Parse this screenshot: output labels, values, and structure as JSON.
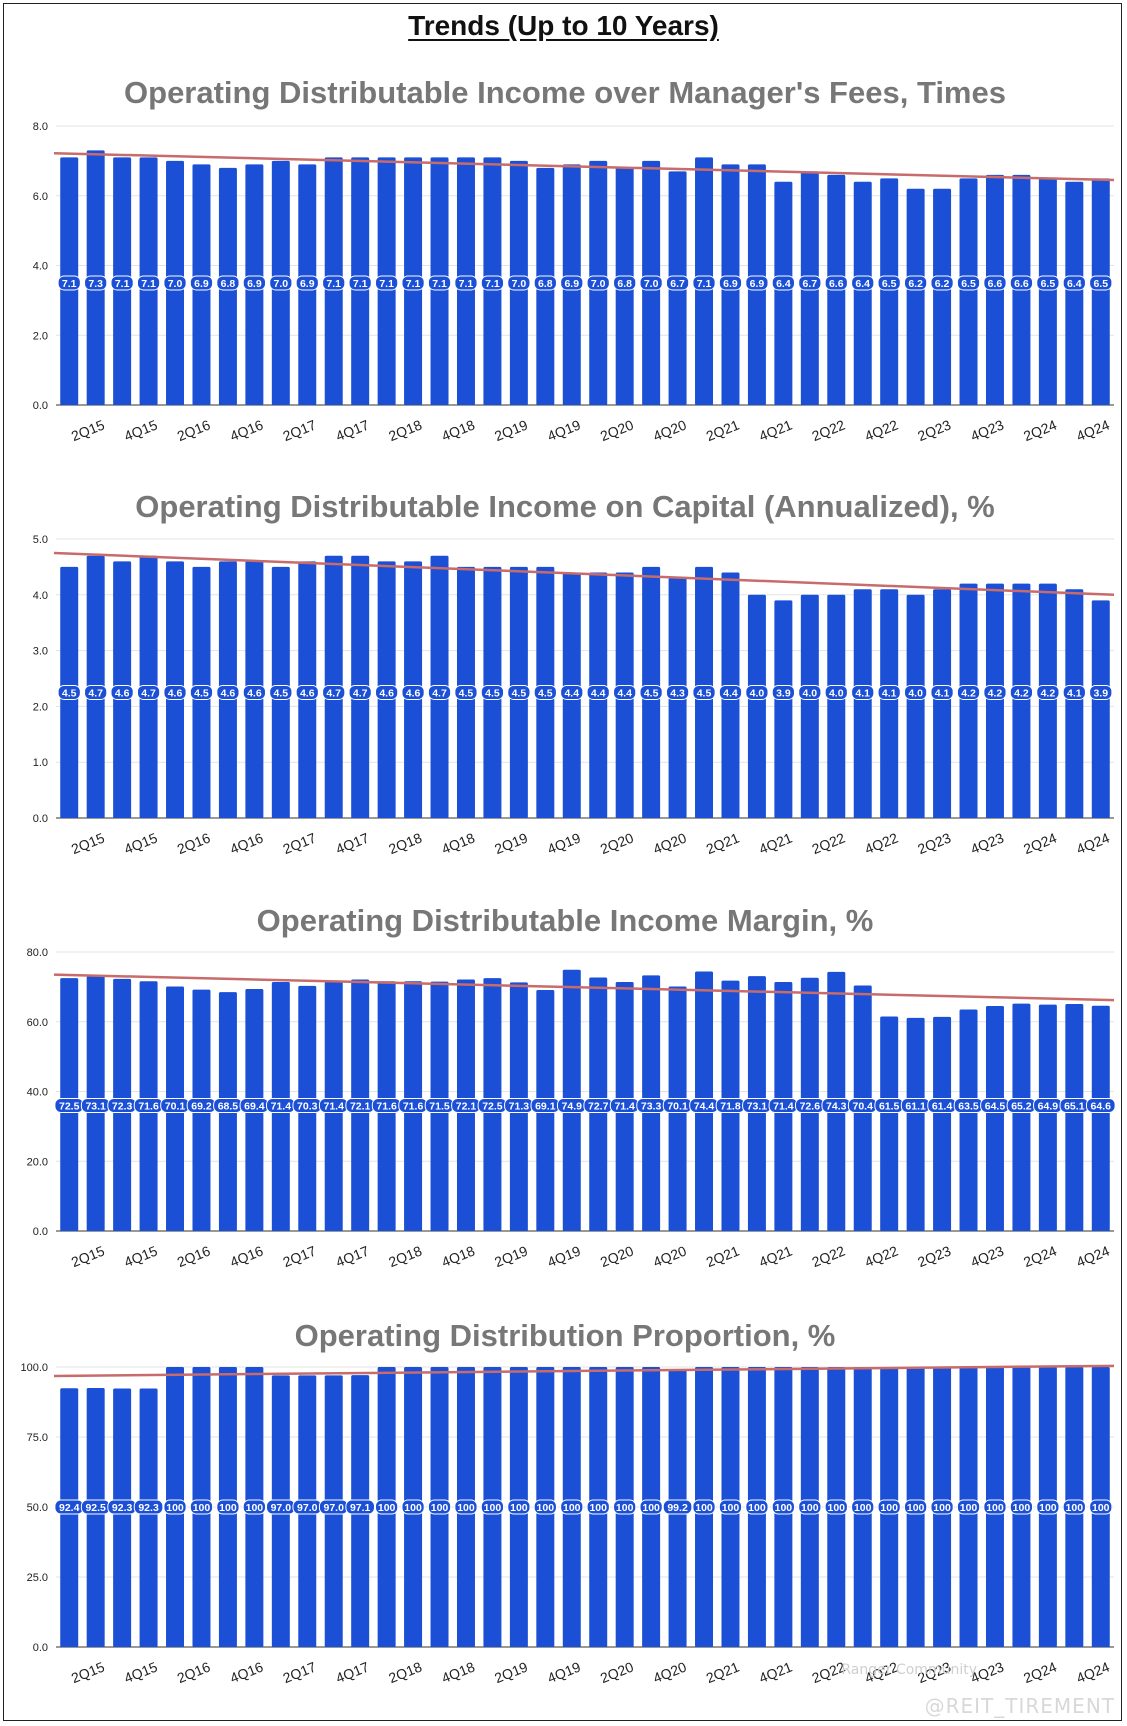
{
  "page": {
    "title": "Trends (Up to 10 Years)"
  },
  "watermark": {
    "handle": "@REIT_TIREMENT",
    "faint": "Ranger Community"
  },
  "colors": {
    "bar": "#1a4fd6",
    "trend": "#c76b6b",
    "grid": "#e3e3e3",
    "label_bg": "#1a4fd6"
  },
  "x_tick_labels": [
    "2Q15",
    "4Q15",
    "2Q16",
    "4Q16",
    "2Q17",
    "4Q17",
    "2Q18",
    "4Q18",
    "2Q19",
    "4Q19",
    "2Q20",
    "4Q20",
    "2Q21",
    "4Q21",
    "2Q22",
    "4Q22",
    "2Q23",
    "4Q23",
    "2Q24",
    "4Q24"
  ],
  "chart_data": [
    {
      "type": "bar",
      "title": "Operating Distributable Income over Manager's Fees, Times",
      "ylim": [
        0,
        8
      ],
      "yticks": [
        "0.0",
        "2.0",
        "4.0",
        "6.0",
        "8.0"
      ],
      "ytick_values": [
        0,
        2,
        4,
        6,
        8
      ],
      "values": [
        7.1,
        7.3,
        7.1,
        7.1,
        7.0,
        6.9,
        6.8,
        6.9,
        7.0,
        6.9,
        7.1,
        7.1,
        7.1,
        7.1,
        7.1,
        7.1,
        7.1,
        7.0,
        6.8,
        6.9,
        7.0,
        6.8,
        7.0,
        6.7,
        7.1,
        6.9,
        6.9,
        6.4,
        6.7,
        6.6,
        6.4,
        6.5,
        6.2,
        6.2,
        6.5,
        6.6,
        6.6,
        6.5,
        6.4,
        6.5
      ],
      "labels": [
        "7.1",
        "7.3",
        "7.1",
        "7.1",
        "7.0",
        "6.9",
        "6.8",
        "6.9",
        "7.0",
        "6.9",
        "7.1",
        "7.1",
        "7.1",
        "7.1",
        "7.1",
        "7.1",
        "7.1",
        "7.0",
        "6.8",
        "6.9",
        "7.0",
        "6.8",
        "7.0",
        "6.7",
        "7.1",
        "6.9",
        "6.9",
        "6.4",
        "6.7",
        "6.6",
        "6.4",
        "6.5",
        "6.2",
        "6.2",
        "6.5",
        "6.6",
        "6.6",
        "6.5",
        "6.4",
        "6.5"
      ],
      "label_anchor": 3.5,
      "trend": [
        7.22,
        6.45
      ]
    },
    {
      "type": "bar",
      "title": "Operating Distributable Income on Capital (Annualized), %",
      "ylim": [
        0,
        5
      ],
      "yticks": [
        "0.0",
        "1.0",
        "2.0",
        "3.0",
        "4.0",
        "5.0"
      ],
      "ytick_values": [
        0,
        1,
        2,
        3,
        4,
        5
      ],
      "values": [
        4.5,
        4.7,
        4.6,
        4.7,
        4.6,
        4.5,
        4.6,
        4.6,
        4.5,
        4.6,
        4.7,
        4.7,
        4.6,
        4.6,
        4.7,
        4.5,
        4.5,
        4.5,
        4.5,
        4.4,
        4.4,
        4.4,
        4.5,
        4.3,
        4.5,
        4.4,
        4.0,
        3.9,
        4.0,
        4.0,
        4.1,
        4.1,
        4.0,
        4.1,
        4.2,
        4.2,
        4.2,
        4.2,
        4.1,
        3.9
      ],
      "labels": [
        "4.5",
        "4.7",
        "4.6",
        "4.7",
        "4.6",
        "4.5",
        "4.6",
        "4.6",
        "4.5",
        "4.6",
        "4.7",
        "4.7",
        "4.6",
        "4.6",
        "4.7",
        "4.5",
        "4.5",
        "4.5",
        "4.5",
        "4.4",
        "4.4",
        "4.4",
        "4.5",
        "4.3",
        "4.5",
        "4.4",
        "4.0",
        "3.9",
        "4.0",
        "4.0",
        "4.1",
        "4.1",
        "4.0",
        "4.1",
        "4.2",
        "4.2",
        "4.2",
        "4.2",
        "4.1",
        "3.9"
      ],
      "label_anchor": 2.25,
      "trend": [
        4.75,
        4.0
      ]
    },
    {
      "type": "bar",
      "title": "Operating Distributable Income Margin, %",
      "ylim": [
        0,
        80
      ],
      "yticks": [
        "0.0",
        "20.0",
        "40.0",
        "60.0",
        "80.0"
      ],
      "ytick_values": [
        0,
        20,
        40,
        60,
        80
      ],
      "values": [
        72.5,
        73.1,
        72.3,
        71.6,
        70.1,
        69.2,
        68.5,
        69.4,
        71.4,
        70.3,
        71.4,
        72.1,
        71.6,
        71.6,
        71.5,
        72.1,
        72.5,
        71.3,
        69.1,
        74.9,
        72.7,
        71.4,
        73.3,
        70.1,
        74.4,
        71.8,
        73.1,
        71.4,
        72.6,
        74.3,
        70.4,
        61.5,
        61.1,
        61.4,
        63.5,
        64.5,
        65.2,
        64.9,
        65.1,
        64.6
      ],
      "labels": [
        "72.5",
        "73.1",
        "72.3",
        "71.6",
        "70.1",
        "69.2",
        "68.5",
        "69.4",
        "71.4",
        "70.3",
        "71.4",
        "72.1",
        "71.6",
        "71.6",
        "71.5",
        "72.1",
        "72.5",
        "71.3",
        "69.1",
        "74.9",
        "72.7",
        "71.4",
        "73.3",
        "70.1",
        "74.4",
        "71.8",
        "73.1",
        "71.4",
        "72.6",
        "74.3",
        "70.4",
        "61.5",
        "61.1",
        "61.4",
        "63.5",
        "64.5",
        "65.2",
        "64.9",
        "65.1",
        "64.6"
      ],
      "label_anchor": 36,
      "trend": [
        73.5,
        66.2
      ]
    },
    {
      "type": "bar",
      "title": "Operating Distribution Proportion, %",
      "ylim": [
        0,
        100
      ],
      "yticks": [
        "0.0",
        "25.0",
        "50.0",
        "75.0",
        "100.0"
      ],
      "ytick_values": [
        0,
        25,
        50,
        75,
        100
      ],
      "values": [
        92.4,
        92.5,
        92.3,
        92.3,
        100,
        100,
        100,
        100,
        97.0,
        97.0,
        97.0,
        97.1,
        100,
        100,
        100,
        100,
        100,
        100,
        100,
        100,
        100,
        100,
        100,
        99.2,
        100,
        100,
        100,
        100,
        100,
        100,
        100,
        100,
        100,
        100,
        100,
        100,
        100,
        100,
        100,
        100
      ],
      "labels": [
        "92.4",
        "92.5",
        "92.3",
        "92.3",
        "100",
        "100",
        "100",
        "100",
        "97.0",
        "97.0",
        "97.0",
        "97.1",
        "100",
        "100",
        "100",
        "100",
        "100",
        "100",
        "100",
        "100",
        "100",
        "100",
        "100",
        "99.2",
        "100",
        "100",
        "100",
        "100",
        "100",
        "100",
        "100",
        "100",
        "100",
        "100",
        "100",
        "100",
        "100",
        "100",
        "100",
        "100"
      ],
      "label_anchor": 50,
      "trend": [
        96.8,
        100.4
      ]
    }
  ]
}
